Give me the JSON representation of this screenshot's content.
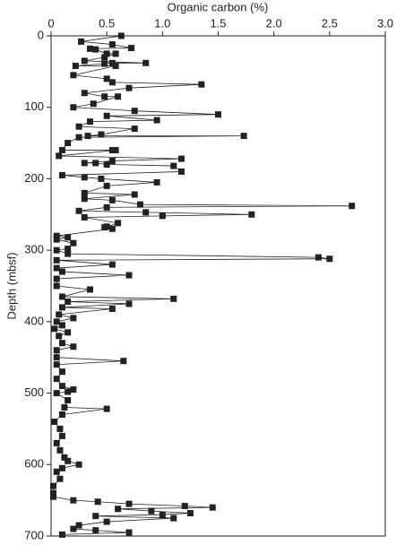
{
  "chart_data": {
    "type": "line",
    "title": "Organic carbon (%)",
    "y_label": "Depth (mbsf)",
    "color": "#222222",
    "y_inverted": true,
    "xlim": [
      0,
      3
    ],
    "xticks": [
      0,
      0.5,
      {
        "value": 1,
        "label": "1.0"
      },
      1.5,
      {
        "value": 2,
        "label": "2.0"
      },
      2.5,
      {
        "value": 3,
        "label": "3.0"
      }
    ],
    "ylim": [
      0,
      700
    ],
    "yticks": [
      0,
      100,
      200,
      300,
      400,
      500,
      600,
      700
    ],
    "x": [
      0.63,
      0.27,
      0.55,
      0.72,
      0.35,
      0.4,
      0.5,
      0.58,
      0.48,
      0.3,
      0.85,
      0.55,
      0.48,
      0.22,
      0.58,
      0.2,
      0.5,
      0.55,
      1.35,
      0.7,
      0.3,
      0.48,
      0.6,
      0.38,
      0.2,
      0.75,
      1.5,
      0.5,
      0.95,
      0.35,
      0.25,
      0.75,
      0.45,
      0.33,
      1.73,
      0.25,
      0.15,
      0.1,
      0.55,
      0.58,
      0.07,
      1.17,
      0.55,
      0.3,
      0.4,
      0.5,
      1.1,
      1.17,
      0.1,
      0.3,
      0.45,
      0.95,
      0.5,
      0.3,
      0.75,
      0.3,
      0.55,
      0.8,
      2.7,
      0.5,
      0.25,
      0.85,
      1.8,
      1.0,
      0.3,
      0.6,
      0.5,
      0.48,
      0.55,
      0.05,
      0.15,
      0.05,
      0.2,
      0.15,
      0.05,
      0.15,
      2.4,
      2.5,
      0.05,
      0.55,
      0.05,
      0.1,
      0.7,
      0.05,
      0.05,
      0.35,
      0.1,
      1.1,
      0.15,
      0.7,
      0.1,
      0.55,
      0.07,
      0.2,
      0.05,
      0.1,
      0.03,
      0.15,
      0.07,
      0.1,
      0.2,
      0.05,
      0.05,
      0.65,
      0.05,
      0.1,
      0.05,
      0.1,
      0.2,
      0.15,
      0.05,
      0.15,
      0.12,
      0.5,
      0.1,
      0.03,
      0.08,
      0.1,
      0.05,
      0.08,
      0.12,
      0.15,
      0.25,
      0.1,
      0.05,
      0.08,
      0.02,
      0.02,
      0.02,
      0.2,
      0.42,
      0.7,
      1.2,
      1.45,
      0.6,
      0.9,
      1.25,
      1.0,
      0.4,
      1.1,
      0.5,
      0.25,
      0.2,
      0.4,
      0.7,
      0.1
    ],
    "values": [
      0,
      8,
      12,
      17,
      18,
      19,
      25,
      25,
      30,
      35,
      38,
      38,
      39,
      42,
      42,
      55,
      60,
      65,
      68,
      73,
      80,
      85,
      85,
      95,
      100,
      105,
      110,
      112,
      118,
      120,
      127,
      130,
      138,
      140,
      140,
      142,
      150,
      160,
      160,
      160,
      168,
      172,
      175,
      178,
      178,
      180,
      182,
      190,
      195,
      198,
      200,
      205,
      210,
      220,
      222,
      228,
      230,
      236,
      238,
      240,
      245,
      247,
      250,
      252,
      254,
      262,
      267,
      268,
      270,
      280,
      282,
      285,
      290,
      298,
      300,
      305,
      310,
      312,
      314,
      320,
      325,
      330,
      335,
      340,
      350,
      355,
      365,
      368,
      372,
      375,
      380,
      382,
      390,
      395,
      400,
      405,
      410,
      415,
      420,
      430,
      435,
      440,
      450,
      455,
      460,
      470,
      480,
      490,
      495,
      498,
      500,
      510,
      520,
      522,
      530,
      540,
      550,
      560,
      570,
      580,
      590,
      595,
      600,
      605,
      610,
      620,
      630,
      640,
      645,
      650,
      652,
      655,
      658,
      660,
      662,
      665,
      668,
      670,
      672,
      675,
      680,
      685,
      690,
      692,
      695,
      698
    ]
  }
}
